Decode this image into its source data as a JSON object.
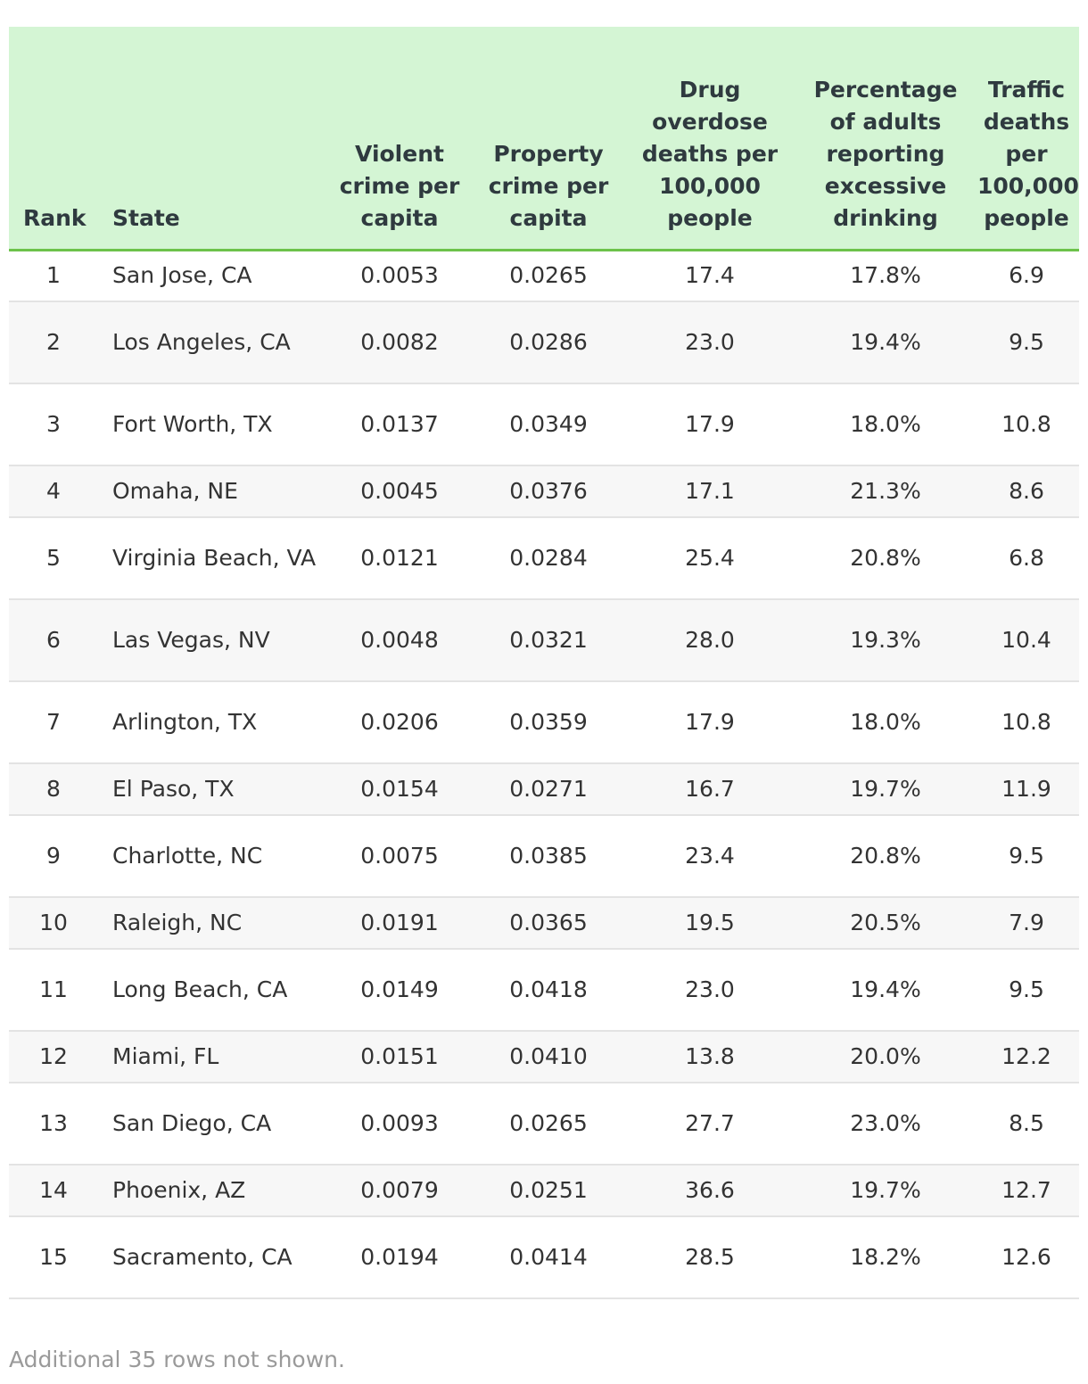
{
  "table": {
    "headers": {
      "rank": "Rank",
      "state": "State",
      "violent": "Violent crime per capita",
      "property": "Property crime per capita",
      "overdose": "Drug overdose deaths per 100,000 people",
      "drinking": "Percentage of adults reporting excessive drinking",
      "traffic": "Traffic deaths per 100,000 people"
    },
    "rows": [
      {
        "rank": "1",
        "state": "San Jose, CA",
        "violent": "0.0053",
        "property": "0.0265",
        "overdose": "17.4",
        "drinking": "17.8%",
        "traffic": "6.9"
      },
      {
        "rank": "2",
        "state": "Los Angeles, CA",
        "violent": "0.0082",
        "property": "0.0286",
        "overdose": "23.0",
        "drinking": "19.4%",
        "traffic": "9.5"
      },
      {
        "rank": "3",
        "state": "Fort Worth, TX",
        "violent": "0.0137",
        "property": "0.0349",
        "overdose": "17.9",
        "drinking": "18.0%",
        "traffic": "10.8"
      },
      {
        "rank": "4",
        "state": "Omaha, NE",
        "violent": "0.0045",
        "property": "0.0376",
        "overdose": "17.1",
        "drinking": "21.3%",
        "traffic": "8.6"
      },
      {
        "rank": "5",
        "state": "Virginia Beach, VA",
        "violent": "0.0121",
        "property": "0.0284",
        "overdose": "25.4",
        "drinking": "20.8%",
        "traffic": "6.8"
      },
      {
        "rank": "6",
        "state": "Las Vegas, NV",
        "violent": "0.0048",
        "property": "0.0321",
        "overdose": "28.0",
        "drinking": "19.3%",
        "traffic": "10.4"
      },
      {
        "rank": "7",
        "state": "Arlington, TX",
        "violent": "0.0206",
        "property": "0.0359",
        "overdose": "17.9",
        "drinking": "18.0%",
        "traffic": "10.8"
      },
      {
        "rank": "8",
        "state": "El Paso, TX",
        "violent": "0.0154",
        "property": "0.0271",
        "overdose": "16.7",
        "drinking": "19.7%",
        "traffic": "11.9"
      },
      {
        "rank": "9",
        "state": "Charlotte, NC",
        "violent": "0.0075",
        "property": "0.0385",
        "overdose": "23.4",
        "drinking": "20.8%",
        "traffic": "9.5"
      },
      {
        "rank": "10",
        "state": "Raleigh, NC",
        "violent": "0.0191",
        "property": "0.0365",
        "overdose": "19.5",
        "drinking": "20.5%",
        "traffic": "7.9"
      },
      {
        "rank": "11",
        "state": "Long Beach, CA",
        "violent": "0.0149",
        "property": "0.0418",
        "overdose": "23.0",
        "drinking": "19.4%",
        "traffic": "9.5"
      },
      {
        "rank": "12",
        "state": "Miami, FL",
        "violent": "0.0151",
        "property": "0.0410",
        "overdose": "13.8",
        "drinking": "20.0%",
        "traffic": "12.2"
      },
      {
        "rank": "13",
        "state": "San Diego, CA",
        "violent": "0.0093",
        "property": "0.0265",
        "overdose": "27.7",
        "drinking": "23.0%",
        "traffic": "8.5"
      },
      {
        "rank": "14",
        "state": "Phoenix, AZ",
        "violent": "0.0079",
        "property": "0.0251",
        "overdose": "36.6",
        "drinking": "19.7%",
        "traffic": "12.7"
      },
      {
        "rank": "15",
        "state": "Sacramento, CA",
        "violent": "0.0194",
        "property": "0.0414",
        "overdose": "28.5",
        "drinking": "18.2%",
        "traffic": "12.6"
      }
    ]
  },
  "footnote": "Additional 35 rows not shown."
}
